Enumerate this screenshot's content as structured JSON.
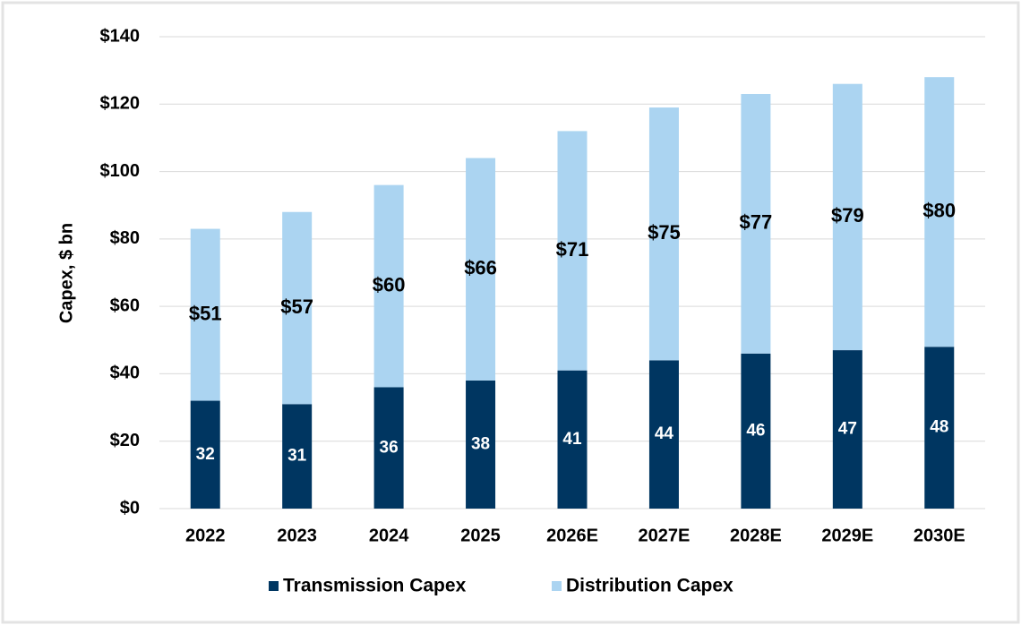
{
  "chart_data": {
    "type": "stacked_bar",
    "y_label": "Capex, $ bn",
    "categories": [
      "2022",
      "2023",
      "2024",
      "2025",
      "2026E",
      "2027E",
      "2028E",
      "2029E",
      "2030E"
    ],
    "series": [
      {
        "name": "Transmission Capex",
        "color": "#003661",
        "label_color": "#ffffff",
        "values": [
          32,
          31,
          36,
          38,
          41,
          44,
          46,
          47,
          48
        ]
      },
      {
        "name": "Distribution Capex",
        "color": "#abd4f1",
        "label_color": "#000000",
        "values": [
          51,
          57,
          60,
          66,
          71,
          75,
          77,
          79,
          80
        ],
        "value_labels": [
          "$51",
          "$57",
          "$60",
          "$66",
          "$71",
          "$75",
          "$77",
          "$79",
          "$80"
        ]
      }
    ],
    "ylim": [
      0,
      140
    ],
    "yticks": [
      {
        "value": 0,
        "label": "$0"
      },
      {
        "value": 20,
        "label": "$20"
      },
      {
        "value": 40,
        "label": "$40"
      },
      {
        "value": 60,
        "label": "$60"
      },
      {
        "value": 80,
        "label": "$80"
      },
      {
        "value": 100,
        "label": "$100"
      },
      {
        "value": 120,
        "label": "$120"
      },
      {
        "value": 140,
        "label": "$140"
      }
    ],
    "grid": true
  }
}
